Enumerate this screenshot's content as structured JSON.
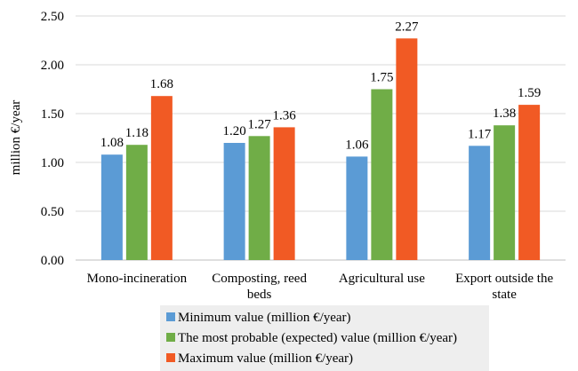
{
  "chart_data": {
    "type": "bar",
    "ylabel": "million €/year",
    "ylim": [
      0,
      2.5
    ],
    "yticks": [
      "0.00",
      "0.50",
      "1.00",
      "1.50",
      "2.00",
      "2.50"
    ],
    "ytick_values": [
      0,
      0.5,
      1.0,
      1.5,
      2.0,
      2.5
    ],
    "categories": [
      [
        "Mono-incineration"
      ],
      [
        "Composting, reed",
        "beds"
      ],
      [
        "Agricultural use"
      ],
      [
        "Export outside the",
        "state"
      ]
    ],
    "series": [
      {
        "name": "Minimum value (million €/year)",
        "color": "#5b9bd5",
        "values": [
          1.08,
          1.2,
          1.06,
          1.17
        ],
        "labels": [
          "1.08",
          "1.20",
          "1.06",
          "1.17"
        ]
      },
      {
        "name": "The most probable (expected) value (million €/year)",
        "color": "#70ad47",
        "values": [
          1.18,
          1.27,
          1.75,
          1.38
        ],
        "labels": [
          "1.18",
          "1.27",
          "1.75",
          "1.38"
        ]
      },
      {
        "name": "Maximum value (million €/year)",
        "color": "#f15a24",
        "values": [
          1.68,
          1.36,
          2.27,
          1.59
        ],
        "labels": [
          "1.68",
          "1.36",
          "2.27",
          "1.59"
        ]
      }
    ],
    "grid": true,
    "legend_position": "bottom"
  }
}
